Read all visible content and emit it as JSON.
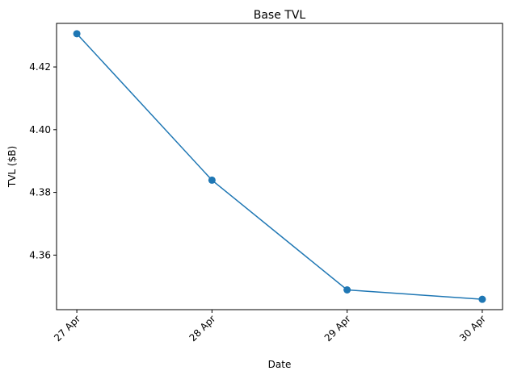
{
  "chart_data": {
    "type": "line",
    "title": "Base TVL",
    "xlabel": "Date",
    "ylabel": "TVL ($B)",
    "categories": [
      "27 Apr",
      "28 Apr",
      "29 Apr",
      "30 Apr"
    ],
    "series": [
      {
        "values": [
          4.4306,
          4.3839,
          4.3489,
          4.3459
        ],
        "color": "#1f77b4"
      }
    ],
    "ylim": [
      4.3426,
      4.4339
    ],
    "yticks": [
      4.36,
      4.38,
      4.4,
      4.42
    ],
    "ytick_labels": [
      "4.36",
      "4.38",
      "4.40",
      "4.42"
    ],
    "grid": false,
    "legend": "none",
    "marker": "circle"
  }
}
